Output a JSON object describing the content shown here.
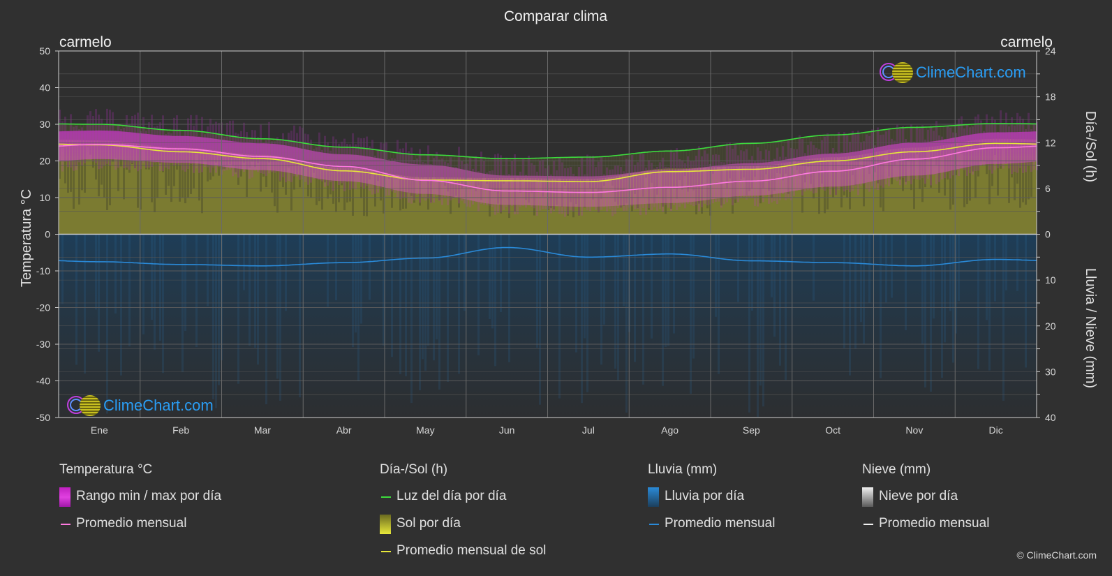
{
  "chart_data": {
    "type": "area",
    "title": "Comparar clima",
    "location_left": "carmelo",
    "location_right": "carmelo",
    "months": [
      "Ene",
      "Feb",
      "Mar",
      "Abr",
      "May",
      "Jun",
      "Jul",
      "Ago",
      "Sep",
      "Oct",
      "Nov",
      "Dic"
    ],
    "y_left": {
      "label": "Temperatura °C",
      "range": [
        -50,
        50
      ],
      "ticks": [
        50,
        40,
        30,
        20,
        10,
        0,
        -10,
        -20,
        -30,
        -40,
        -50
      ]
    },
    "y_right_top": {
      "label": "Día-/Sol (h)",
      "range": [
        0,
        24
      ],
      "ticks": [
        24,
        18,
        12,
        6,
        0
      ]
    },
    "y_right_bottom": {
      "label": "Lluvia / Nieve (mm)",
      "range": [
        0,
        40
      ],
      "ticks": [
        0,
        10,
        20,
        30,
        40
      ]
    },
    "series": [
      {
        "name": "Luz del día por día",
        "unit": "h",
        "color": "#3ddc3d",
        "values": [
          14.4,
          13.6,
          12.5,
          11.4,
          10.4,
          9.9,
          10.1,
          10.9,
          11.9,
          13.0,
          14.0,
          14.5
        ]
      },
      {
        "name": "Promedio mensual de sol",
        "unit": "h",
        "color": "#e8e83a",
        "values": [
          11.7,
          10.8,
          9.9,
          8.3,
          7.1,
          7.0,
          6.9,
          8.2,
          8.5,
          9.6,
          10.8,
          11.9
        ]
      },
      {
        "name": "Promedio mensual",
        "group": "Temperatura °C",
        "unit": "°C",
        "color": "#ff7ae0",
        "values": [
          24.5,
          23.3,
          21.2,
          18.5,
          14.7,
          11.8,
          11.4,
          12.8,
          14.5,
          17.2,
          20.5,
          23.6
        ]
      },
      {
        "name": "Rango min / max por día",
        "unit": "°C",
        "color": "#e23ad8",
        "max": [
          28.3,
          26.8,
          24.8,
          21.8,
          19.0,
          16.0,
          15.8,
          17.6,
          19.4,
          22.0,
          25.0,
          27.8
        ],
        "min": [
          20.5,
          19.5,
          17.5,
          14.5,
          11.0,
          8.0,
          7.5,
          8.5,
          10.5,
          13.0,
          16.0,
          19.2
        ]
      },
      {
        "name": "Promedio mensual",
        "group": "Lluvia (mm)",
        "unit": "mm",
        "color": "#2a8ad8",
        "values": [
          6.0,
          6.6,
          6.9,
          6.2,
          5.2,
          2.9,
          5.0,
          4.3,
          5.8,
          6.2,
          6.9,
          5.5
        ]
      }
    ],
    "grid": true
  },
  "legend": {
    "temp": {
      "head": "Temperatura °C",
      "range": "Rango min / max por día",
      "avg": "Promedio mensual"
    },
    "sun": {
      "head": "Día-/Sol (h)",
      "daylight": "Luz del día por día",
      "sun": "Sol por día",
      "sun_avg": "Promedio mensual de sol"
    },
    "rain": {
      "head": "Lluvia (mm)",
      "daily": "Lluvia por día",
      "avg": "Promedio mensual"
    },
    "snow": {
      "head": "Nieve (mm)",
      "daily": "Nieve por día",
      "avg": "Promedio mensual"
    }
  },
  "watermark": "ClimeChart.com",
  "copyright": "© ClimeChart.com"
}
